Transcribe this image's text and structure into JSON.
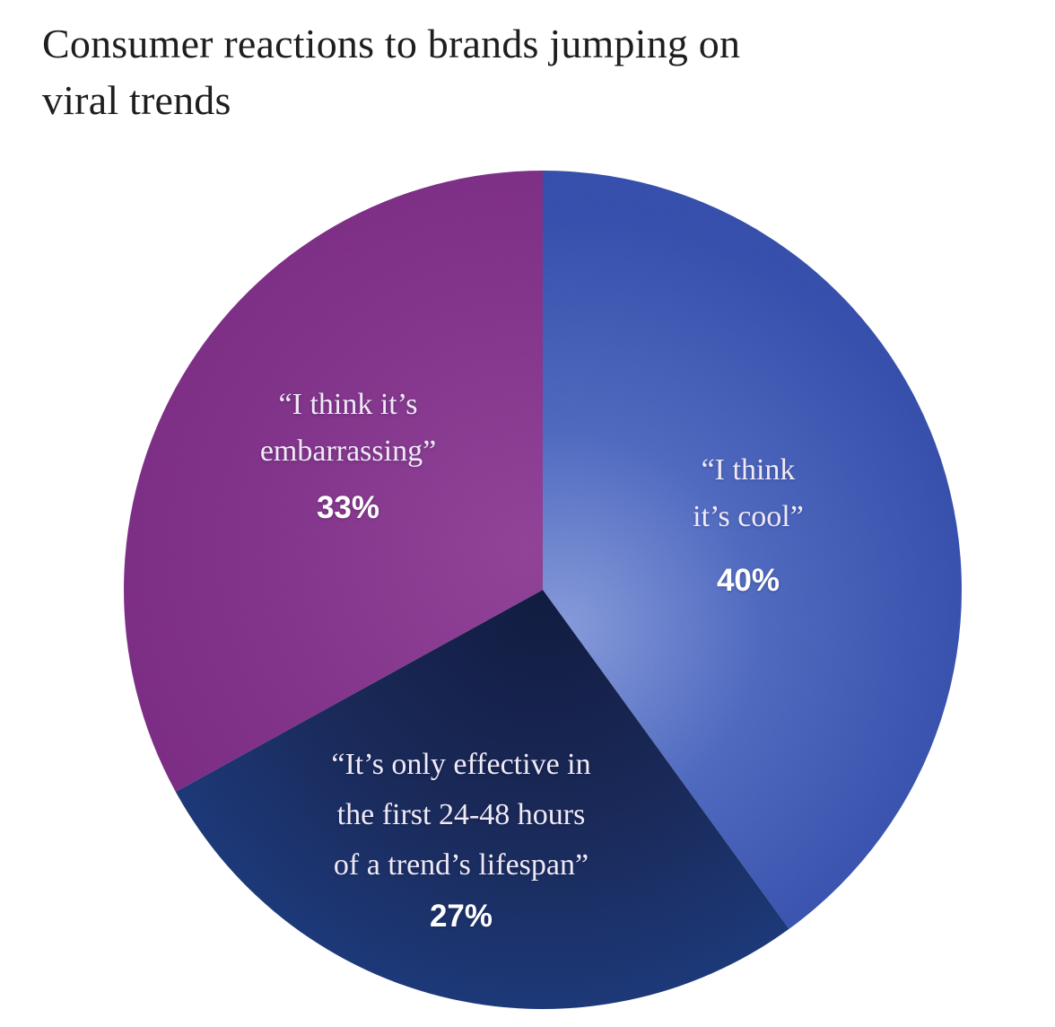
{
  "title": "Consumer reactions to brands jumping on\nviral trends",
  "chart_data": {
    "type": "pie",
    "title": "Consumer reactions to brands jumping on viral trends",
    "legend": "none",
    "background": "#FFFFFF",
    "start_angle_deg": 0,
    "direction": "clockwise",
    "label_text_color": "#EFEAF7",
    "value_text_color": "#FFFFFF",
    "title_color": "#1E1E1E",
    "slices": [
      {
        "id": "cool",
        "label": "“I think\nit’s cool”",
        "value": 40,
        "value_label": "40%",
        "base_color": "#3B57B9",
        "gradient": [
          {
            "offset": "0%",
            "color": "#90A5E8"
          },
          {
            "offset": "45%",
            "color": "#5571CC"
          },
          {
            "offset": "95%",
            "color": "#3A55B7"
          }
        ]
      },
      {
        "id": "effective",
        "label": "“It’s only effective in\nthe first 24-48 hours\nof a trend’s lifespan”",
        "value": 27,
        "value_label": "27%",
        "base_color": "#1D2C5E",
        "gradient": [
          {
            "offset": "0%",
            "color": "#131E45"
          },
          {
            "offset": "55%",
            "color": "#1C2C5E"
          },
          {
            "offset": "100%",
            "color": "#1F3D80"
          }
        ]
      },
      {
        "id": "embarrassing",
        "label": "“I think it’s\nembarrassing”",
        "value": 33,
        "value_label": "33%",
        "base_color": "#8C3A95",
        "gradient": [
          {
            "offset": "0%",
            "color": "#9A48A2"
          },
          {
            "offset": "55%",
            "color": "#8C3A95"
          },
          {
            "offset": "100%",
            "color": "#84308D"
          }
        ]
      }
    ]
  }
}
